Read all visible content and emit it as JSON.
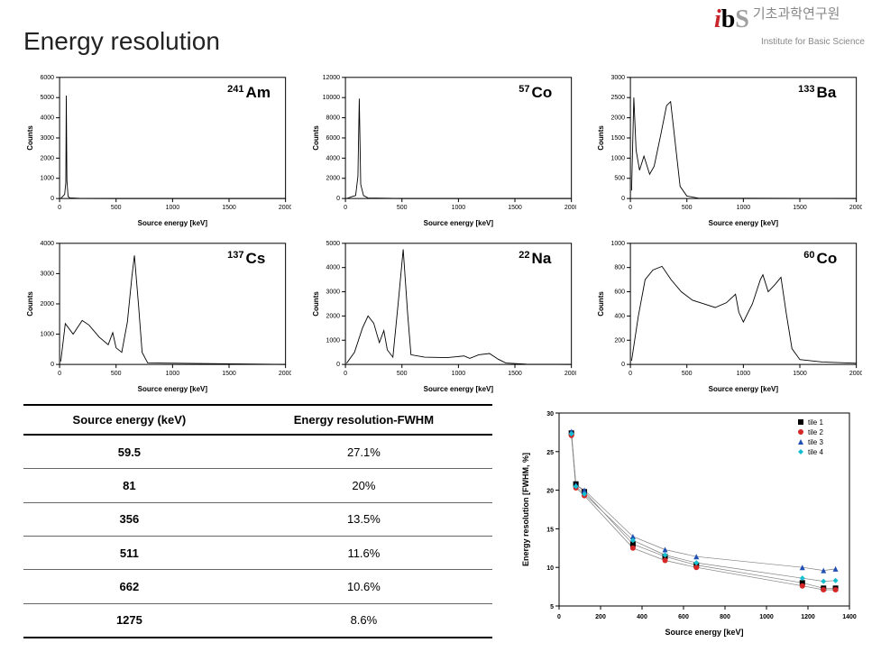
{
  "logo": {
    "kr": "기초과학연구원",
    "en": "Institute for Basic Science"
  },
  "page_title": "Energy resolution",
  "spectra_common": {
    "xlabel": "Source energy [keV]",
    "ylabel": "Counts",
    "xlim": [
      0,
      2000
    ],
    "xtick_step": 500,
    "label_fontsize": 8,
    "tick_fontsize": 7,
    "line_color": "#000000",
    "frame_color": "#000000",
    "bg_color": "#ffffff"
  },
  "spectra": [
    {
      "isotope_mass": "241",
      "isotope_sym": "Am",
      "ylim": [
        0,
        6000
      ],
      "ytick_step": 1000,
      "data": [
        [
          10,
          0
        ],
        [
          45,
          200
        ],
        [
          55,
          800
        ],
        [
          59,
          5100
        ],
        [
          65,
          900
        ],
        [
          75,
          100
        ],
        [
          90,
          30
        ],
        [
          200,
          5
        ],
        [
          500,
          0
        ],
        [
          2000,
          0
        ]
      ]
    },
    {
      "isotope_mass": "57",
      "isotope_sym": "Co",
      "ylim": [
        0,
        12000
      ],
      "ytick_step": 2000,
      "data": [
        [
          10,
          0
        ],
        [
          60,
          200
        ],
        [
          90,
          300
        ],
        [
          110,
          2200
        ],
        [
          122,
          9900
        ],
        [
          135,
          1400
        ],
        [
          160,
          300
        ],
        [
          200,
          50
        ],
        [
          500,
          0
        ],
        [
          2000,
          0
        ]
      ]
    },
    {
      "isotope_mass": "133",
      "isotope_sym": "Ba",
      "ylim": [
        0,
        3000
      ],
      "ytick_step": 500,
      "data": [
        [
          10,
          200
        ],
        [
          30,
          2500
        ],
        [
          50,
          1200
        ],
        [
          81,
          700
        ],
        [
          120,
          1050
        ],
        [
          170,
          600
        ],
        [
          210,
          800
        ],
        [
          270,
          1600
        ],
        [
          320,
          2300
        ],
        [
          356,
          2400
        ],
        [
          400,
          1300
        ],
        [
          440,
          300
        ],
        [
          500,
          60
        ],
        [
          600,
          10
        ],
        [
          2000,
          0
        ]
      ]
    },
    {
      "isotope_mass": "137",
      "isotope_sym": "Cs",
      "ylim": [
        0,
        4000
      ],
      "ytick_step": 1000,
      "data": [
        [
          10,
          100
        ],
        [
          50,
          1350
        ],
        [
          120,
          1000
        ],
        [
          200,
          1450
        ],
        [
          260,
          1300
        ],
        [
          350,
          900
        ],
        [
          430,
          650
        ],
        [
          470,
          1050
        ],
        [
          500,
          550
        ],
        [
          550,
          400
        ],
        [
          600,
          1400
        ],
        [
          640,
          2900
        ],
        [
          662,
          3600
        ],
        [
          700,
          1900
        ],
        [
          730,
          400
        ],
        [
          780,
          50
        ],
        [
          2000,
          0
        ]
      ]
    },
    {
      "isotope_mass": "22",
      "isotope_sym": "Na",
      "ylim": [
        0,
        5000
      ],
      "ytick_step": 1000,
      "data": [
        [
          10,
          50
        ],
        [
          80,
          500
        ],
        [
          150,
          1500
        ],
        [
          200,
          2000
        ],
        [
          250,
          1700
        ],
        [
          300,
          900
        ],
        [
          340,
          1400
        ],
        [
          370,
          600
        ],
        [
          420,
          300
        ],
        [
          470,
          2700
        ],
        [
          511,
          4750
        ],
        [
          550,
          2100
        ],
        [
          580,
          400
        ],
        [
          700,
          300
        ],
        [
          900,
          280
        ],
        [
          1050,
          350
        ],
        [
          1100,
          250
        ],
        [
          1180,
          400
        ],
        [
          1275,
          450
        ],
        [
          1350,
          220
        ],
        [
          1420,
          60
        ],
        [
          1600,
          10
        ],
        [
          2000,
          0
        ]
      ]
    },
    {
      "isotope_mass": "60",
      "isotope_sym": "Co",
      "ylim": [
        0,
        1000
      ],
      "ytick_step": 200,
      "data": [
        [
          10,
          30
        ],
        [
          70,
          400
        ],
        [
          130,
          700
        ],
        [
          200,
          780
        ],
        [
          280,
          810
        ],
        [
          360,
          700
        ],
        [
          450,
          600
        ],
        [
          550,
          530
        ],
        [
          650,
          500
        ],
        [
          750,
          470
        ],
        [
          850,
          510
        ],
        [
          930,
          580
        ],
        [
          960,
          430
        ],
        [
          1000,
          350
        ],
        [
          1080,
          500
        ],
        [
          1150,
          700
        ],
        [
          1173,
          740
        ],
        [
          1220,
          600
        ],
        [
          1280,
          660
        ],
        [
          1333,
          720
        ],
        [
          1380,
          420
        ],
        [
          1430,
          130
        ],
        [
          1500,
          40
        ],
        [
          1700,
          20
        ],
        [
          2000,
          10
        ]
      ]
    }
  ],
  "table": {
    "columns": [
      "Source energy (keV)",
      "Energy resolution-FWHM"
    ],
    "rows": [
      [
        "59.5",
        "27.1%"
      ],
      [
        "81",
        "20%"
      ],
      [
        "356",
        "13.5%"
      ],
      [
        "511",
        "11.6%"
      ],
      [
        "662",
        "10.6%"
      ],
      [
        "1275",
        "8.6%"
      ]
    ]
  },
  "scatter": {
    "title": "",
    "xlabel": "Source energy [keV]",
    "ylabel": "Energy resolution [FWHM, %]",
    "xlim": [
      0,
      1400
    ],
    "xtick_step": 200,
    "ylim": [
      5,
      30
    ],
    "ytick_step": 5,
    "grid_color": "#e6e6e6",
    "frame_color": "#000000",
    "line_color": "#808080",
    "series": [
      {
        "name": "tile 1",
        "color": "#000000",
        "marker": "square",
        "points": [
          [
            59.5,
            27.4
          ],
          [
            81,
            20.8
          ],
          [
            122,
            19.8
          ],
          [
            356,
            13.0
          ],
          [
            511,
            11.4
          ],
          [
            662,
            10.3
          ],
          [
            1173,
            8.0
          ],
          [
            1275,
            7.3
          ],
          [
            1333,
            7.3
          ]
        ]
      },
      {
        "name": "tile 2",
        "color": "#d62728",
        "marker": "circle",
        "points": [
          [
            59.5,
            27.1
          ],
          [
            81,
            20.3
          ],
          [
            122,
            19.3
          ],
          [
            356,
            12.5
          ],
          [
            511,
            10.9
          ],
          [
            662,
            10.0
          ],
          [
            1173,
            7.6
          ],
          [
            1275,
            7.1
          ],
          [
            1333,
            7.1
          ]
        ]
      },
      {
        "name": "tile 3",
        "color": "#1f4fb4",
        "marker": "triangle",
        "points": [
          [
            59.5,
            27.6
          ],
          [
            81,
            20.7
          ],
          [
            122,
            20.0
          ],
          [
            356,
            14.0
          ],
          [
            511,
            12.3
          ],
          [
            662,
            11.4
          ],
          [
            1173,
            10.0
          ],
          [
            1275,
            9.6
          ],
          [
            1333,
            9.8
          ]
        ]
      },
      {
        "name": "tile 4",
        "color": "#17becf",
        "marker": "diamond",
        "points": [
          [
            59.5,
            27.3
          ],
          [
            81,
            20.5
          ],
          [
            122,
            19.5
          ],
          [
            356,
            13.5
          ],
          [
            511,
            11.6
          ],
          [
            662,
            10.6
          ],
          [
            1173,
            8.6
          ],
          [
            1275,
            8.2
          ],
          [
            1333,
            8.3
          ]
        ]
      }
    ]
  }
}
